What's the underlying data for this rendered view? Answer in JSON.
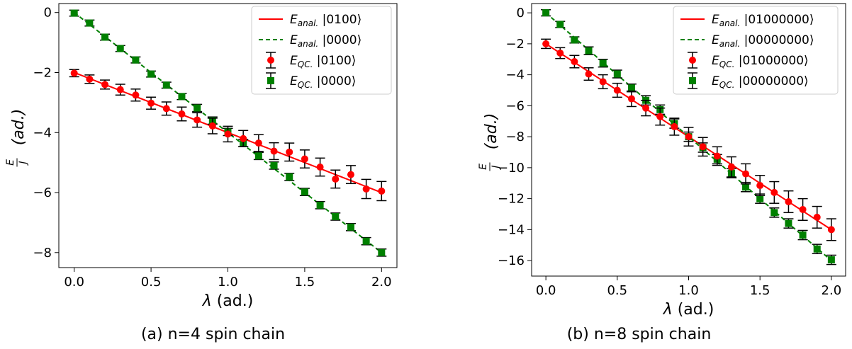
{
  "chart_data": [
    {
      "type": "line",
      "caption": "(a) n=4 spin chain",
      "xlabel": "λ (ad.)",
      "ylabel": "E/J (ad.)",
      "ylabel_frac_num": "E",
      "ylabel_frac_den": "J",
      "ylabel_unit": "(ad.)",
      "xlim": [
        -0.1,
        2.1
      ],
      "ylim": [
        -8.5,
        0.3
      ],
      "xticks": [
        0.0,
        0.5,
        1.0,
        1.5,
        2.0
      ],
      "xtick_labels": [
        "0.0",
        "0.5",
        "1.0",
        "1.5",
        "2.0"
      ],
      "yticks": [
        0,
        -2,
        -4,
        -6,
        -8
      ],
      "ytick_labels": [
        "0",
        "−2",
        "−4",
        "−6",
        "−8"
      ],
      "legend_position": "top-right",
      "legend": [
        {
          "kind": "line-solid",
          "sym": "E",
          "sub": "anal.",
          "ket": "|0100⟩",
          "color": "#ff0000"
        },
        {
          "kind": "line-dashed",
          "sym": "E",
          "sub": "anal.",
          "ket": "|0000⟩",
          "color": "#008000"
        },
        {
          "kind": "circle",
          "sym": "E",
          "sub": "QC.",
          "ket": "|0100⟩",
          "color": "#ff0000"
        },
        {
          "kind": "square",
          "sym": "E",
          "sub": "QC.",
          "ket": "|0000⟩",
          "color": "#008000"
        }
      ],
      "analytic": {
        "state_0100": {
          "x": [
            0,
            2
          ],
          "y": [
            -2,
            -6
          ],
          "color": "#ff0000"
        },
        "state_0000": {
          "x": [
            0,
            2
          ],
          "y": [
            0,
            -8
          ],
          "color": "#008000"
        }
      },
      "qc_0100": {
        "color": "#ff0000",
        "x": [
          0,
          0.1,
          0.2,
          0.3,
          0.4,
          0.5,
          0.6,
          0.7,
          0.8,
          0.9,
          1.0,
          1.1,
          1.2,
          1.3,
          1.4,
          1.5,
          1.6,
          1.7,
          1.8,
          1.9,
          2.0
        ],
        "y": [
          -2.02,
          -2.22,
          -2.4,
          -2.57,
          -2.75,
          -3.02,
          -3.2,
          -3.38,
          -3.58,
          -3.78,
          -4.05,
          -4.2,
          -4.35,
          -4.62,
          -4.65,
          -4.88,
          -5.15,
          -5.55,
          -5.4,
          -5.88,
          -5.95
        ],
        "err": [
          0.12,
          0.14,
          0.15,
          0.18,
          0.2,
          0.2,
          0.22,
          0.23,
          0.24,
          0.26,
          0.26,
          0.27,
          0.28,
          0.28,
          0.3,
          0.3,
          0.3,
          0.3,
          0.3,
          0.32,
          0.32
        ]
      },
      "qc_0000": {
        "color": "#008000",
        "x": [
          0,
          0.1,
          0.2,
          0.3,
          0.4,
          0.5,
          0.6,
          0.7,
          0.8,
          0.9,
          1.0,
          1.1,
          1.2,
          1.3,
          1.4,
          1.5,
          1.6,
          1.7,
          1.8,
          1.9,
          2.0
        ],
        "y": [
          -0.02,
          -0.35,
          -0.82,
          -1.2,
          -1.58,
          -2.05,
          -2.42,
          -2.8,
          -3.18,
          -3.6,
          -3.98,
          -4.35,
          -4.78,
          -5.1,
          -5.48,
          -5.98,
          -6.42,
          -6.8,
          -7.15,
          -7.62,
          -8.0
        ],
        "err": [
          0.1,
          0.1,
          0.1,
          0.1,
          0.1,
          0.1,
          0.1,
          0.1,
          0.12,
          0.12,
          0.12,
          0.12,
          0.12,
          0.12,
          0.12,
          0.12,
          0.12,
          0.12,
          0.12,
          0.12,
          0.12
        ]
      }
    },
    {
      "type": "line",
      "caption": "(b) n=8 spin chain",
      "xlabel": "λ (ad.)",
      "ylabel": "E/J (ad.)",
      "ylabel_frac_num": "E",
      "ylabel_frac_den": "J",
      "ylabel_unit": "(ad.)",
      "xlim": [
        -0.1,
        2.1
      ],
      "ylim": [
        -17.0,
        0.6
      ],
      "xticks": [
        0.0,
        0.5,
        1.0,
        1.5,
        2.0
      ],
      "xtick_labels": [
        "0.0",
        "0.5",
        "1.0",
        "1.5",
        "2.0"
      ],
      "yticks": [
        0,
        -2,
        -4,
        -6,
        -8,
        -10,
        -12,
        -14,
        -16
      ],
      "ytick_labels": [
        "0",
        "−2",
        "−4",
        "−6",
        "−8",
        "−10",
        "−12",
        "−14",
        "−16"
      ],
      "legend_position": "top-right",
      "legend": [
        {
          "kind": "line-solid",
          "sym": "E",
          "sub": "anal.",
          "ket": "|01000000⟩",
          "color": "#ff0000"
        },
        {
          "kind": "line-dashed",
          "sym": "E",
          "sub": "anal.",
          "ket": "|00000000⟩",
          "color": "#008000"
        },
        {
          "kind": "circle",
          "sym": "E",
          "sub": "QC.",
          "ket": "|01000000⟩",
          "color": "#ff0000"
        },
        {
          "kind": "square",
          "sym": "E",
          "sub": "QC.",
          "ket": "|00000000⟩",
          "color": "#008000"
        }
      ],
      "analytic": {
        "state_0100": {
          "x": [
            0,
            2
          ],
          "y": [
            -2,
            -14
          ],
          "color": "#ff0000"
        },
        "state_0000": {
          "x": [
            0,
            2
          ],
          "y": [
            0,
            -16
          ],
          "color": "#008000"
        }
      },
      "qc_0100": {
        "color": "#ff0000",
        "x": [
          0,
          0.1,
          0.2,
          0.3,
          0.4,
          0.5,
          0.6,
          0.7,
          0.8,
          0.9,
          1.0,
          1.1,
          1.2,
          1.3,
          1.4,
          1.5,
          1.6,
          1.7,
          1.8,
          1.9,
          2.0
        ],
        "y": [
          -2.0,
          -2.6,
          -3.15,
          -3.95,
          -4.45,
          -5.0,
          -5.55,
          -6.15,
          -6.7,
          -7.35,
          -8.0,
          -8.65,
          -9.25,
          -9.95,
          -10.4,
          -11.15,
          -11.6,
          -12.2,
          -12.7,
          -13.2,
          -14.0
        ],
        "err": [
          0.3,
          0.35,
          0.4,
          0.4,
          0.45,
          0.45,
          0.5,
          0.5,
          0.55,
          0.55,
          0.6,
          0.6,
          0.6,
          0.65,
          0.65,
          0.65,
          0.7,
          0.7,
          0.7,
          0.7,
          0.7
        ]
      },
      "qc_0000": {
        "color": "#008000",
        "x": [
          0,
          0.1,
          0.2,
          0.3,
          0.4,
          0.5,
          0.6,
          0.7,
          0.8,
          0.9,
          1.0,
          1.1,
          1.2,
          1.3,
          1.4,
          1.5,
          1.6,
          1.7,
          1.8,
          1.9,
          2.0
        ],
        "y": [
          0.0,
          -0.75,
          -1.75,
          -2.45,
          -3.25,
          -3.95,
          -4.85,
          -5.65,
          -6.25,
          -7.15,
          -8.0,
          -8.7,
          -9.45,
          -10.35,
          -11.25,
          -12.0,
          -12.9,
          -13.6,
          -14.35,
          -15.25,
          -15.95
        ],
        "err": [
          0.2,
          0.2,
          0.2,
          0.25,
          0.25,
          0.25,
          0.25,
          0.3,
          0.3,
          0.3,
          0.3,
          0.3,
          0.3,
          0.3,
          0.3,
          0.3,
          0.3,
          0.3,
          0.3,
          0.3,
          0.3
        ]
      }
    }
  ]
}
